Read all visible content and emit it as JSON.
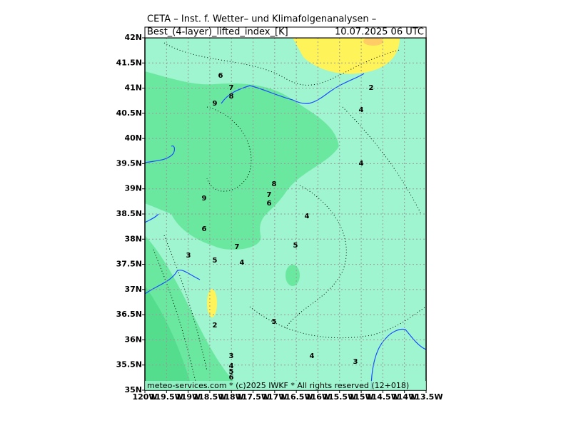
{
  "header": {
    "title": "CETA – Inst. f. Wetter– und Klimafolgenanalysen –",
    "parameter": "Best_(4-layer)_lifted_index_[K]",
    "valid_time": "10.07.2025 06 UTC"
  },
  "footer": "meteo-services.com * (c)2025 IWKF * All rights reserved (12+018)",
  "axes": {
    "lat_labels": [
      "35N",
      "35.5N",
      "36N",
      "36.5N",
      "37N",
      "37.5N",
      "38N",
      "38.5N",
      "39N",
      "39.5N",
      "40N",
      "40.5N",
      "41N",
      "41.5N",
      "42N"
    ],
    "lon_labels": [
      "120W",
      "119.5W",
      "119W",
      "118.5W",
      "118W",
      "117.5W",
      "117W",
      "116.5W",
      "116W",
      "115.5W",
      "115W",
      "114.5W",
      "114W",
      "113.5W"
    ]
  },
  "contour_labels": [
    "6",
    "7",
    "8",
    "9",
    "2",
    "4",
    "4",
    "8",
    "7",
    "6",
    "9",
    "4",
    "6",
    "7",
    "5",
    "3",
    "5",
    "4",
    "2",
    "5",
    "3",
    "4",
    "3",
    "4",
    "5",
    "6"
  ]
}
